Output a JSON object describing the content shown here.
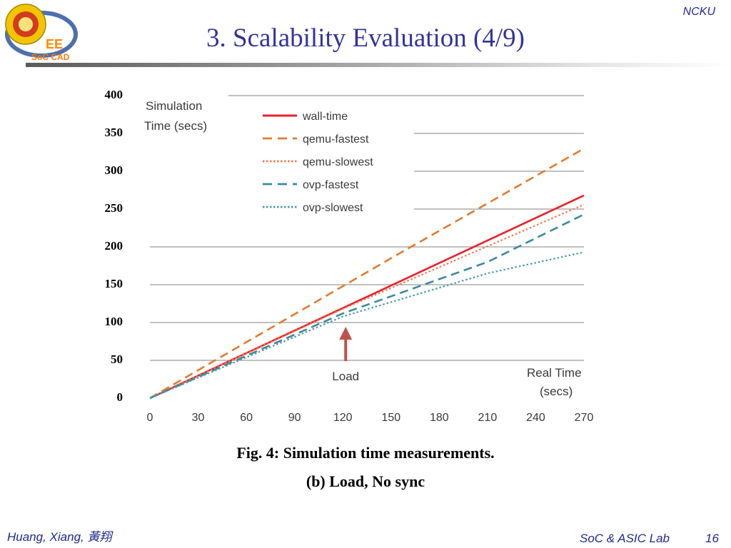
{
  "header": {
    "title": "3. Scalability Evaluation (4/9)",
    "org": "NCKU",
    "logo_text": "EE",
    "logo_sub": "SoC CAD"
  },
  "footer": {
    "author": "Huang, Xiang,  黃翔",
    "lab": "SoC & ASIC Lab",
    "page": "16"
  },
  "caption": {
    "line1": "Fig. 4: Simulation time measurements.",
    "line2": "(b) Load, No sync"
  },
  "chart_data": {
    "type": "line",
    "ylabel_lines": [
      "Simulation",
      "Time (secs)"
    ],
    "xlabel_lines": [
      "Real Time",
      "(secs)"
    ],
    "annotation": "Load",
    "annotation_x": 120,
    "xlim": [
      0,
      270
    ],
    "ylim": [
      0,
      400
    ],
    "x_ticks": [
      0,
      30,
      60,
      90,
      120,
      150,
      180,
      210,
      240,
      270
    ],
    "y_ticks": [
      0,
      50,
      100,
      150,
      200,
      250,
      300,
      350,
      400
    ],
    "grid": true,
    "legend_position": "top-left",
    "series": [
      {
        "name": "wall-time",
        "color": "#e8202a",
        "style": "solid",
        "x": [
          0,
          270
        ],
        "y": [
          0,
          268
        ]
      },
      {
        "name": "qemu-fastest",
        "color": "#e07b30",
        "style": "dashed",
        "x": [
          0,
          150,
          270
        ],
        "y": [
          0,
          185,
          330
        ]
      },
      {
        "name": "qemu-slowest",
        "color": "#f07850",
        "style": "dotted",
        "x": [
          0,
          120,
          270
        ],
        "y": [
          0,
          118,
          256
        ]
      },
      {
        "name": "ovp-fastest",
        "color": "#3a8a9e",
        "style": "dashed",
        "x": [
          0,
          120,
          210,
          270
        ],
        "y": [
          0,
          112,
          180,
          243
        ]
      },
      {
        "name": "ovp-slowest",
        "color": "#4a9aa8",
        "style": "dotted",
        "x": [
          0,
          120,
          210,
          270
        ],
        "y": [
          0,
          108,
          165,
          193
        ]
      }
    ]
  }
}
